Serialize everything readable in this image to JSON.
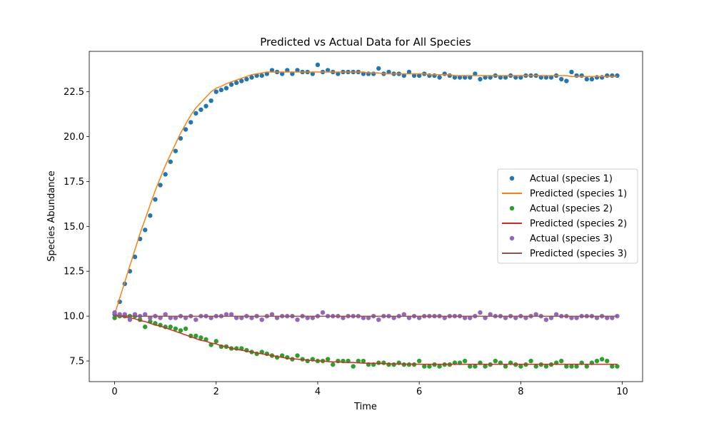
{
  "chart_data": {
    "type": "scatter",
    "title": "Predicted vs Actual Data for All Species",
    "xlabel": "Time",
    "ylabel": "Species Abundance",
    "xlim": [
      -0.5,
      10.4
    ],
    "ylim": [
      6.35,
      24.75
    ],
    "xticks": [
      0,
      2,
      4,
      6,
      8,
      10
    ],
    "xtick_labels": [
      "0",
      "2",
      "4",
      "6",
      "8",
      "10"
    ],
    "yticks": [
      7.5,
      10.0,
      12.5,
      15.0,
      17.5,
      20.0,
      22.5
    ],
    "ytick_labels": [
      "7.5",
      "10.0",
      "12.5",
      "15.0",
      "17.5",
      "20.0",
      "22.5"
    ],
    "grid": false,
    "legend_position": "center-right",
    "x": [
      0.0,
      0.1,
      0.2,
      0.3,
      0.4,
      0.5,
      0.6,
      0.7,
      0.8,
      0.9,
      1.0,
      1.1,
      1.2,
      1.3,
      1.4,
      1.5,
      1.6,
      1.7,
      1.8,
      1.9,
      2.0,
      2.1,
      2.2,
      2.3,
      2.4,
      2.5,
      2.6,
      2.7,
      2.8,
      2.9,
      3.0,
      3.1,
      3.2,
      3.3,
      3.4,
      3.5,
      3.6,
      3.7,
      3.8,
      3.9,
      4.0,
      4.1,
      4.2,
      4.3,
      4.4,
      4.5,
      4.6,
      4.7,
      4.8,
      4.9,
      5.0,
      5.1,
      5.2,
      5.3,
      5.4,
      5.5,
      5.6,
      5.7,
      5.8,
      5.9,
      6.0,
      6.1,
      6.2,
      6.3,
      6.4,
      6.5,
      6.6,
      6.7,
      6.8,
      6.9,
      7.0,
      7.1,
      7.2,
      7.3,
      7.4,
      7.5,
      7.6,
      7.7,
      7.8,
      7.9,
      8.0,
      8.1,
      8.2,
      8.3,
      8.4,
      8.5,
      8.6,
      8.7,
      8.8,
      8.9,
      9.0,
      9.1,
      9.2,
      9.3,
      9.4,
      9.5,
      9.6,
      9.7,
      9.8,
      9.9
    ],
    "series": [
      {
        "name": "Actual (species 1)",
        "kind": "scatter",
        "color": "#1f77b4",
        "values": [
          10.1,
          10.8,
          11.8,
          12.5,
          13.3,
          14.3,
          14.8,
          15.6,
          16.5,
          17.3,
          17.9,
          18.6,
          19.2,
          19.9,
          20.4,
          20.8,
          21.3,
          21.5,
          21.7,
          22.0,
          22.5,
          22.6,
          22.7,
          22.9,
          23.0,
          23.1,
          23.2,
          23.3,
          23.4,
          23.4,
          23.5,
          23.7,
          23.6,
          23.5,
          23.7,
          23.5,
          23.7,
          23.6,
          23.6,
          23.5,
          24.0,
          23.6,
          23.7,
          23.6,
          23.5,
          23.6,
          23.6,
          23.6,
          23.6,
          23.5,
          23.5,
          23.5,
          23.8,
          23.5,
          23.6,
          23.5,
          23.5,
          23.4,
          23.6,
          23.4,
          23.4,
          23.5,
          23.4,
          23.4,
          23.3,
          23.5,
          23.4,
          23.3,
          23.3,
          23.3,
          23.3,
          23.5,
          23.2,
          23.3,
          23.3,
          23.4,
          23.3,
          23.3,
          23.4,
          23.3,
          23.3,
          23.4,
          23.4,
          23.4,
          23.3,
          23.3,
          23.3,
          23.4,
          23.2,
          23.1,
          23.6,
          23.4,
          23.4,
          23.2,
          23.2,
          23.3,
          23.3,
          23.4,
          23.4,
          23.4
        ]
      },
      {
        "name": "Predicted (species 1)",
        "kind": "line",
        "color": "#ff7f0e",
        "values": [
          10.1,
          11.0,
          11.9,
          12.8,
          13.7,
          14.6,
          15.4,
          16.2,
          17.0,
          17.7,
          18.4,
          19.0,
          19.6,
          20.2,
          20.7,
          21.2,
          21.6,
          21.9,
          22.2,
          22.5,
          22.7,
          22.8,
          22.95,
          23.05,
          23.15,
          23.25,
          23.35,
          23.45,
          23.5,
          23.55,
          23.6,
          23.6,
          23.6,
          23.6,
          23.6,
          23.6,
          23.6,
          23.6,
          23.6,
          23.6,
          23.6,
          23.6,
          23.6,
          23.6,
          23.6,
          23.6,
          23.6,
          23.6,
          23.6,
          23.6,
          23.55,
          23.55,
          23.55,
          23.5,
          23.5,
          23.5,
          23.5,
          23.5,
          23.5,
          23.5,
          23.5,
          23.5,
          23.45,
          23.45,
          23.45,
          23.45,
          23.45,
          23.4,
          23.4,
          23.4,
          23.4,
          23.4,
          23.4,
          23.4,
          23.4,
          23.4,
          23.4,
          23.4,
          23.4,
          23.4,
          23.4,
          23.4,
          23.4,
          23.4,
          23.4,
          23.4,
          23.4,
          23.4,
          23.4,
          23.4,
          23.35,
          23.35,
          23.35,
          23.35,
          23.35,
          23.35,
          23.35,
          23.35,
          23.35,
          23.35
        ]
      },
      {
        "name": "Actual (species 2)",
        "kind": "scatter",
        "color": "#2ca02c",
        "values": [
          9.9,
          10.0,
          10.0,
          10.0,
          10.0,
          9.8,
          9.4,
          9.7,
          9.6,
          9.5,
          9.4,
          9.4,
          9.3,
          9.2,
          9.3,
          8.9,
          8.9,
          8.8,
          8.7,
          8.4,
          8.6,
          8.3,
          8.3,
          8.2,
          8.2,
          8.2,
          8.1,
          8.0,
          7.9,
          8.0,
          7.9,
          7.8,
          7.7,
          7.8,
          7.7,
          7.6,
          7.8,
          7.6,
          7.5,
          7.6,
          7.5,
          7.5,
          7.6,
          7.3,
          7.5,
          7.5,
          7.5,
          7.2,
          7.5,
          7.5,
          7.3,
          7.3,
          7.4,
          7.4,
          7.3,
          7.3,
          7.4,
          7.3,
          7.3,
          7.3,
          7.5,
          7.2,
          7.2,
          7.3,
          7.2,
          7.3,
          7.3,
          7.4,
          7.4,
          7.5,
          7.2,
          7.2,
          7.4,
          7.2,
          7.3,
          7.5,
          7.4,
          7.2,
          7.4,
          7.3,
          7.2,
          7.3,
          7.5,
          7.2,
          7.3,
          7.2,
          7.3,
          7.4,
          7.5,
          7.2,
          7.2,
          7.2,
          7.4,
          7.2,
          7.4,
          7.5,
          7.6,
          7.5,
          7.2,
          7.2
        ]
      },
      {
        "name": "Predicted (species 2)",
        "kind": "line",
        "color": "#d62728",
        "values": [
          10.0,
          10.0,
          9.95,
          9.9,
          9.85,
          9.75,
          9.7,
          9.6,
          9.5,
          9.45,
          9.35,
          9.25,
          9.15,
          9.05,
          8.95,
          8.85,
          8.75,
          8.65,
          8.6,
          8.5,
          8.45,
          8.35,
          8.3,
          8.2,
          8.15,
          8.1,
          8.05,
          8.0,
          7.95,
          7.9,
          7.85,
          7.8,
          7.75,
          7.7,
          7.65,
          7.62,
          7.6,
          7.57,
          7.55,
          7.52,
          7.5,
          7.5,
          7.47,
          7.45,
          7.45,
          7.43,
          7.42,
          7.42,
          7.4,
          7.38,
          7.38,
          7.37,
          7.37,
          7.35,
          7.35,
          7.34,
          7.34,
          7.33,
          7.33,
          7.33,
          7.32,
          7.32,
          7.32,
          7.32,
          7.32,
          7.32,
          7.32,
          7.32,
          7.32,
          7.32,
          7.32,
          7.32,
          7.32,
          7.32,
          7.32,
          7.32,
          7.32,
          7.32,
          7.32,
          7.32,
          7.32,
          7.32,
          7.32,
          7.32,
          7.32,
          7.32,
          7.32,
          7.32,
          7.32,
          7.32,
          7.32,
          7.32,
          7.32,
          7.32,
          7.32,
          7.32,
          7.32,
          7.32,
          7.32,
          7.32
        ]
      },
      {
        "name": "Actual (species 3)",
        "kind": "scatter",
        "color": "#9467bd",
        "values": [
          10.2,
          10.1,
          10.1,
          9.8,
          10.1,
          10.0,
          10.1,
          9.9,
          10.0,
          9.9,
          10.1,
          9.9,
          9.9,
          10.0,
          9.9,
          10.0,
          9.8,
          10.0,
          10.0,
          9.9,
          10.0,
          10.0,
          10.1,
          10.1,
          9.9,
          9.9,
          10.0,
          9.9,
          10.0,
          9.8,
          10.0,
          10.1,
          9.9,
          10.0,
          10.0,
          10.0,
          9.8,
          10.0,
          9.9,
          9.9,
          10.0,
          10.2,
          10.0,
          10.0,
          10.0,
          9.9,
          10.0,
          10.0,
          10.0,
          9.9,
          9.9,
          10.0,
          9.8,
          10.0,
          10.0,
          9.9,
          10.0,
          10.1,
          9.9,
          10.0,
          9.9,
          10.0,
          10.0,
          10.0,
          10.0,
          9.9,
          10.0,
          10.0,
          10.0,
          9.9,
          9.9,
          10.0,
          10.2,
          9.9,
          10.1,
          10.0,
          10.0,
          9.9,
          10.0,
          9.9,
          10.0,
          9.9,
          10.0,
          10.1,
          10.0,
          9.8,
          9.9,
          10.1,
          10.0,
          10.0,
          9.9,
          9.9,
          10.0,
          10.0,
          10.0,
          9.9,
          10.0,
          9.9,
          9.9,
          10.0
        ]
      },
      {
        "name": "Predicted (species 3)",
        "kind": "line",
        "color": "#8c564b",
        "values": [
          10.05,
          10.03,
          10.01,
          10.0,
          10.0,
          9.99,
          9.99,
          9.99,
          9.99,
          9.99,
          9.99,
          9.99,
          9.99,
          9.99,
          9.99,
          9.99,
          9.99,
          9.99,
          9.99,
          9.99,
          9.99,
          9.99,
          9.99,
          9.99,
          9.99,
          9.99,
          9.99,
          9.99,
          9.99,
          9.99,
          9.99,
          9.99,
          9.99,
          9.99,
          9.99,
          9.99,
          9.99,
          9.99,
          9.99,
          9.99,
          9.99,
          9.99,
          9.99,
          9.99,
          9.99,
          9.99,
          9.99,
          9.99,
          9.99,
          9.99,
          9.99,
          9.99,
          9.99,
          9.99,
          9.99,
          9.99,
          9.99,
          9.99,
          9.99,
          9.99,
          9.99,
          9.99,
          9.99,
          9.99,
          9.99,
          9.99,
          9.99,
          9.99,
          9.99,
          9.99,
          9.99,
          9.99,
          9.99,
          9.99,
          9.99,
          9.99,
          9.99,
          9.99,
          9.99,
          9.99,
          9.99,
          9.99,
          9.99,
          9.99,
          9.99,
          9.99,
          9.99,
          9.99,
          9.99,
          9.99,
          9.99,
          9.99,
          9.99,
          9.99,
          9.99,
          9.99,
          9.99,
          9.99,
          9.99,
          9.99
        ]
      }
    ]
  }
}
